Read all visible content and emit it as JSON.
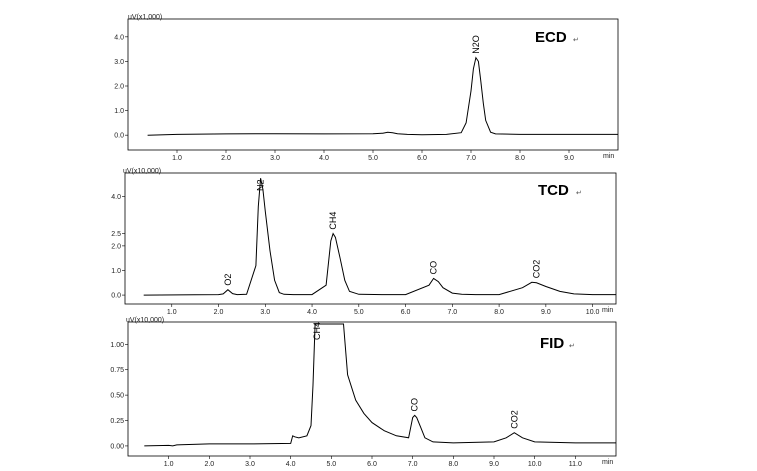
{
  "chart_data": [
    {
      "type": "line",
      "title": "ECD",
      "ylabel": "uV(x1,000)",
      "xunit": "min",
      "xlim": [
        0.0,
        10.0
      ],
      "ylim": [
        -0.4,
        4.4
      ],
      "xticks": [
        "1.0",
        "2.0",
        "3.0",
        "4.0",
        "5.0",
        "6.0",
        "7.0",
        "8.0",
        "9.0"
      ],
      "yticks": [
        "0.0",
        "1.0",
        "2.0",
        "3.0",
        "4.0"
      ],
      "series": [
        {
          "x": [
            0.4,
            1.0,
            2.0,
            3.0,
            4.0,
            5.0,
            5.2,
            5.3,
            5.4,
            5.5,
            5.7,
            6.0,
            6.5,
            6.8,
            6.9,
            7.0,
            7.05,
            7.1,
            7.15,
            7.2,
            7.25,
            7.3,
            7.4,
            7.5,
            8.0,
            9.0,
            10.0
          ],
          "y": [
            0.0,
            0.03,
            0.05,
            0.06,
            0.05,
            0.06,
            0.08,
            0.12,
            0.1,
            0.06,
            0.03,
            0.02,
            0.03,
            0.1,
            0.5,
            1.8,
            2.7,
            3.15,
            3.0,
            2.2,
            1.3,
            0.6,
            0.12,
            0.05,
            0.03,
            0.03,
            0.03
          ]
        }
      ],
      "peaks": [
        {
          "label": "N2O",
          "x": 7.1,
          "y": 3.15
        }
      ]
    },
    {
      "type": "line",
      "title": "TCD",
      "ylabel": "uV(x10,000)",
      "xunit": "min",
      "xlim": [
        0.0,
        10.5
      ],
      "ylim": [
        -0.2,
        4.8
      ],
      "xticks": [
        "1.0",
        "2.0",
        "3.0",
        "4.0",
        "5.0",
        "6.0",
        "7.0",
        "8.0",
        "9.0",
        "10.0"
      ],
      "yticks": [
        "0.0",
        "1.0",
        "2.0",
        "2.5",
        "4.0"
      ],
      "series": [
        {
          "x": [
            0.4,
            1.5,
            2.0,
            2.1,
            2.2,
            2.3,
            2.4,
            2.6,
            2.8,
            2.85,
            2.9,
            2.95,
            3.0,
            3.1,
            3.2,
            3.3,
            3.4,
            3.6,
            4.0,
            4.3,
            4.4,
            4.45,
            4.5,
            4.6,
            4.7,
            4.8,
            5.0,
            5.5,
            6.0,
            6.5,
            6.6,
            6.7,
            6.8,
            7.0,
            7.2,
            7.5,
            8.0,
            8.5,
            8.7,
            8.8,
            9.0,
            9.3,
            9.6,
            10.0,
            10.5
          ],
          "y": [
            0.0,
            0.01,
            0.02,
            0.05,
            0.22,
            0.06,
            0.02,
            0.03,
            1.2,
            3.6,
            4.75,
            4.3,
            3.4,
            1.8,
            0.6,
            0.1,
            0.03,
            0.02,
            0.02,
            0.4,
            2.2,
            2.5,
            2.35,
            1.5,
            0.6,
            0.15,
            0.03,
            0.02,
            0.02,
            0.4,
            0.68,
            0.55,
            0.3,
            0.08,
            0.03,
            0.02,
            0.02,
            0.3,
            0.52,
            0.5,
            0.35,
            0.15,
            0.05,
            0.02,
            0.02
          ]
        }
      ],
      "peaks": [
        {
          "label": "O2",
          "x": 2.2,
          "y": 0.22
        },
        {
          "label": "N2",
          "x": 2.9,
          "y": 4.75
        },
        {
          "label": "CH4",
          "x": 4.45,
          "y": 2.5
        },
        {
          "label": "CO",
          "x": 6.6,
          "y": 0.68
        },
        {
          "label": "CO2",
          "x": 8.8,
          "y": 0.52
        }
      ]
    },
    {
      "type": "line",
      "title": "FID",
      "ylabel": "uV(x10,000)",
      "xunit": "min",
      "xlim": [
        0.0,
        12.0
      ],
      "ylim": [
        -0.05,
        1.2
      ],
      "xticks": [
        "1.0",
        "2.0",
        "3.0",
        "4.0",
        "5.0",
        "6.0",
        "7.0",
        "8.0",
        "9.0",
        "10.0",
        "11.0"
      ],
      "yticks": [
        "0.00",
        "0.25",
        "0.50",
        "0.75",
        "1.00"
      ],
      "series": [
        {
          "x": [
            0.4,
            1.0,
            1.1,
            1.2,
            2.0,
            3.0,
            4.0,
            4.05,
            4.1,
            4.2,
            4.4,
            4.5,
            4.55,
            4.6,
            4.65,
            4.7,
            5.3,
            5.4,
            5.6,
            5.8,
            6.0,
            6.3,
            6.6,
            6.9,
            7.0,
            7.05,
            7.1,
            7.2,
            7.3,
            7.5,
            8.0,
            9.0,
            9.3,
            9.5,
            9.7,
            10.0,
            11.0,
            12.0
          ],
          "y": [
            0.0,
            0.005,
            0.0,
            0.01,
            0.02,
            0.02,
            0.025,
            0.1,
            0.09,
            0.08,
            0.1,
            0.2,
            0.6,
            1.2,
            1.2,
            1.2,
            1.2,
            0.7,
            0.45,
            0.32,
            0.23,
            0.15,
            0.1,
            0.08,
            0.28,
            0.3,
            0.28,
            0.18,
            0.08,
            0.04,
            0.03,
            0.04,
            0.08,
            0.13,
            0.08,
            0.04,
            0.03,
            0.03
          ]
        }
      ],
      "peaks": [
        {
          "label": "CH4",
          "x": 4.65,
          "y": 1.2
        },
        {
          "label": "CO",
          "x": 7.05,
          "y": 0.3
        },
        {
          "label": "CO2",
          "x": 9.5,
          "y": 0.13
        }
      ]
    }
  ]
}
